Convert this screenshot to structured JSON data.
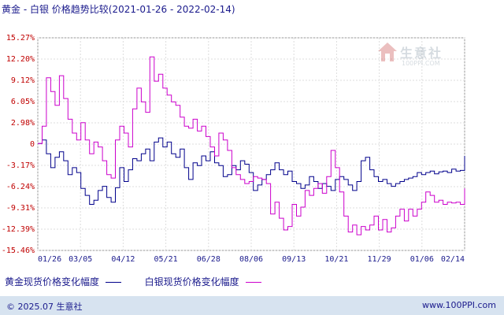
{
  "title": "黄金 - 白银 价格趋势比较(2021-01-26 - 2022-02-14)",
  "legend": [
    {
      "label": "黄金现货价格变化幅度",
      "color": "#00008b"
    },
    {
      "label": "白银现货价格变化幅度",
      "color": "#cc00cc"
    }
  ],
  "footer": {
    "left": "© 2025.07 生意社",
    "right": "www.100PPI.com"
  },
  "watermark": {
    "text": "生意社",
    "url": "100PPI.COM"
  },
  "chart_data": {
    "type": "line",
    "y_ticks": [
      "15.27%",
      "12.20%",
      "9.12%",
      "6.05%",
      "2.98%",
      "0",
      "-3.17%",
      "-6.24%",
      "-9.31%",
      "-12.39%",
      "-15.46%"
    ],
    "x_ticks": [
      "01/26",
      "03/05",
      "04/12",
      "05/21",
      "06/28",
      "08/06",
      "09/13",
      "10/21",
      "11/29",
      "01/06",
      "02/14"
    ],
    "ylim": [
      -15.46,
      15.27
    ],
    "grid": true,
    "series": [
      {
        "name": "黄金现货价格变化幅度",
        "color": "#00008b",
        "values": [
          0,
          0.5,
          -1.5,
          -3.5,
          -2.0,
          -1.2,
          -2.5,
          -4.5,
          -3.5,
          -4.2,
          -6.5,
          -7.5,
          -8.8,
          -8.2,
          -6.8,
          -6.2,
          -7.8,
          -8.5,
          -6.4,
          -3.5,
          -5.5,
          -3.8,
          -2.2,
          -2.5,
          -1.5,
          -0.8,
          -2.5,
          0.2,
          0.8,
          -0.5,
          0.2,
          -1.5,
          -2.0,
          -0.8,
          -3.5,
          -5.2,
          -2.8,
          -3.2,
          -1.8,
          -2.5,
          -1.2,
          -2.8,
          -3.2,
          -4.8,
          -4.5,
          -3.2,
          -3.8,
          -2.5,
          -3.0,
          -4.2,
          -6.8,
          -6.0,
          -5.2,
          -4.5,
          -3.8,
          -2.8,
          -3.8,
          -4.5,
          -4.0,
          -5.5,
          -5.8,
          -6.5,
          -6.0,
          -4.8,
          -5.5,
          -6.5,
          -5.8,
          -6.2,
          -6.8,
          -5.2,
          -4.8,
          -5.2,
          -6.0,
          -6.8,
          -5.5,
          -2.5,
          -2.0,
          -3.8,
          -4.8,
          -5.5,
          -5.2,
          -5.8,
          -6.2,
          -5.8,
          -5.5,
          -5.2,
          -5.0,
          -4.8,
          -4.2,
          -4.5,
          -4.2,
          -4.0,
          -4.4,
          -4.1,
          -4.0,
          -4.2,
          -3.7,
          -4.0,
          -3.9,
          -1.8
        ]
      },
      {
        "name": "白银现货价格变化幅度",
        "color": "#cc00cc",
        "values": [
          0,
          2.5,
          9.5,
          7.5,
          5.5,
          9.8,
          6.5,
          3.5,
          1.5,
          0.5,
          3.0,
          0.5,
          -1.5,
          0.2,
          -0.5,
          -2.5,
          -4.5,
          -5.0,
          0.5,
          2.5,
          1.5,
          -0.5,
          5.0,
          8.0,
          6.0,
          4.5,
          12.5,
          9.0,
          10.0,
          8.0,
          7.0,
          6.0,
          5.5,
          3.8,
          2.5,
          2.2,
          3.5,
          1.8,
          2.5,
          1.0,
          -0.5,
          -1.8,
          1.5,
          0.5,
          -1.0,
          -3.5,
          -4.5,
          -5.2,
          -5.8,
          -5.5,
          -4.8,
          -5.0,
          -5.2,
          -5.8,
          -10.2,
          -8.5,
          -10.8,
          -12.5,
          -12.0,
          -8.8,
          -10.5,
          -9.2,
          -6.8,
          -7.5,
          -6.5,
          -5.8,
          -7.2,
          -4.8,
          -1.0,
          -3.5,
          -7.0,
          -10.5,
          -12.8,
          -11.8,
          -13.2,
          -12.0,
          -12.5,
          -11.8,
          -10.5,
          -12.5,
          -11.0,
          -12.8,
          -12.2,
          -10.5,
          -9.5,
          -11.2,
          -9.5,
          -10.5,
          -9.5,
          -8.5,
          -7.0,
          -7.5,
          -8.5,
          -8.2,
          -8.8,
          -8.5,
          -8.6,
          -8.5,
          -8.8,
          -6.5
        ]
      }
    ]
  }
}
